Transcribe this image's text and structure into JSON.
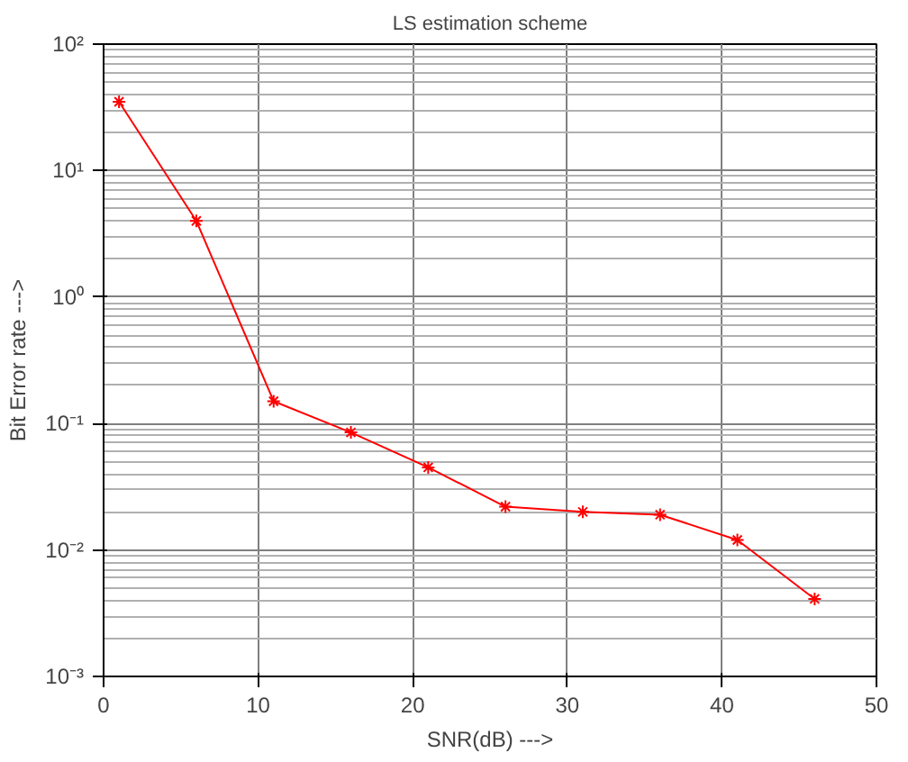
{
  "chart_data": {
    "type": "line",
    "title": "LS estimation scheme",
    "xlabel": "SNR(dB) --->",
    "ylabel": "Bit Error rate --->",
    "x": [
      1,
      6,
      11,
      16,
      21,
      26,
      31,
      36,
      41,
      46
    ],
    "series": [
      {
        "color": "#ff0000",
        "values": [
          35,
          4,
          0.15,
          0.085,
          0.045,
          0.022,
          0.02,
          0.019,
          0.012,
          0.0041
        ]
      }
    ],
    "xlim": [
      0,
      50
    ],
    "xticks": [
      0,
      10,
      20,
      30,
      40,
      50
    ],
    "ylim": [
      0.001,
      100
    ],
    "yticks": [
      {
        "value": 0.001,
        "label": "10⁻³"
      },
      {
        "value": 0.01,
        "label": "10⁻²"
      },
      {
        "value": 0.1,
        "label": "10⁻¹"
      },
      {
        "value": 1,
        "label": "10⁰"
      },
      {
        "value": 10,
        "label": "10¹"
      },
      {
        "value": 100,
        "label": "10²"
      }
    ],
    "log": "y",
    "grid": true,
    "marker": "cross",
    "line_style": "solid"
  }
}
